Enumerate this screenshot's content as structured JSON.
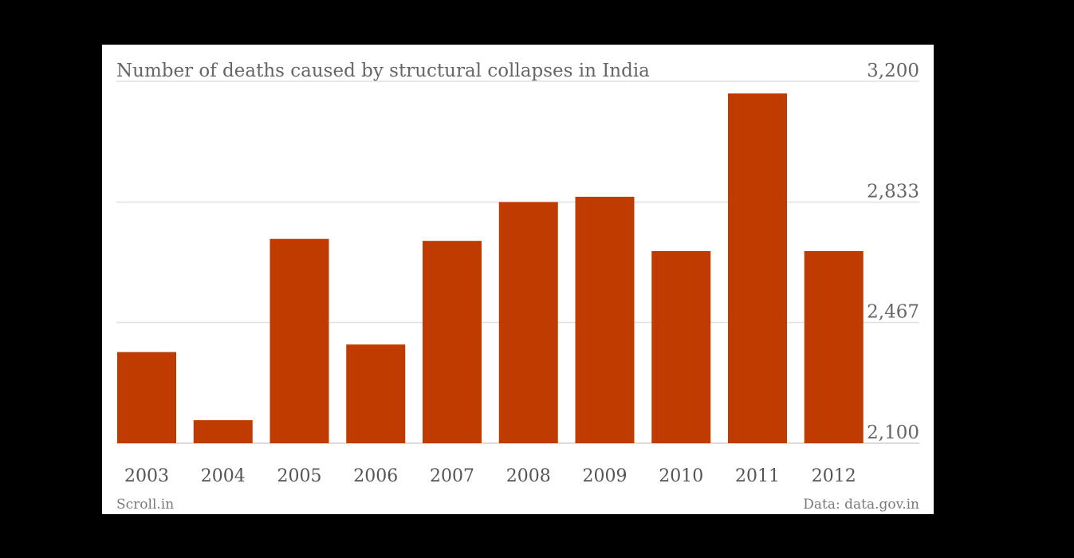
{
  "chart_data": {
    "type": "bar",
    "title": "Number of deaths caused by structural collapses in India",
    "categories": [
      "2003",
      "2004",
      "2005",
      "2006",
      "2007",
      "2008",
      "2009",
      "2010",
      "2011",
      "2012"
    ],
    "values": [
      2377,
      2170,
      2721,
      2400,
      2715,
      2833,
      2849,
      2684,
      3163,
      2684
    ],
    "ylim": [
      2100,
      3200
    ],
    "yticks": [
      2100,
      2467,
      2833,
      3200
    ],
    "ytick_labels": [
      "2,100",
      "2,467",
      "2,833",
      "3,200"
    ],
    "y_axis_position": "right",
    "grid": true,
    "bar_color": "#c03b00",
    "source": "Data: data.gov.in",
    "credit": "Scroll.in"
  },
  "colors": {
    "background": "#ffffff",
    "text": "#666666",
    "grid": "#e0e0e0",
    "bar": "#c03b00"
  }
}
